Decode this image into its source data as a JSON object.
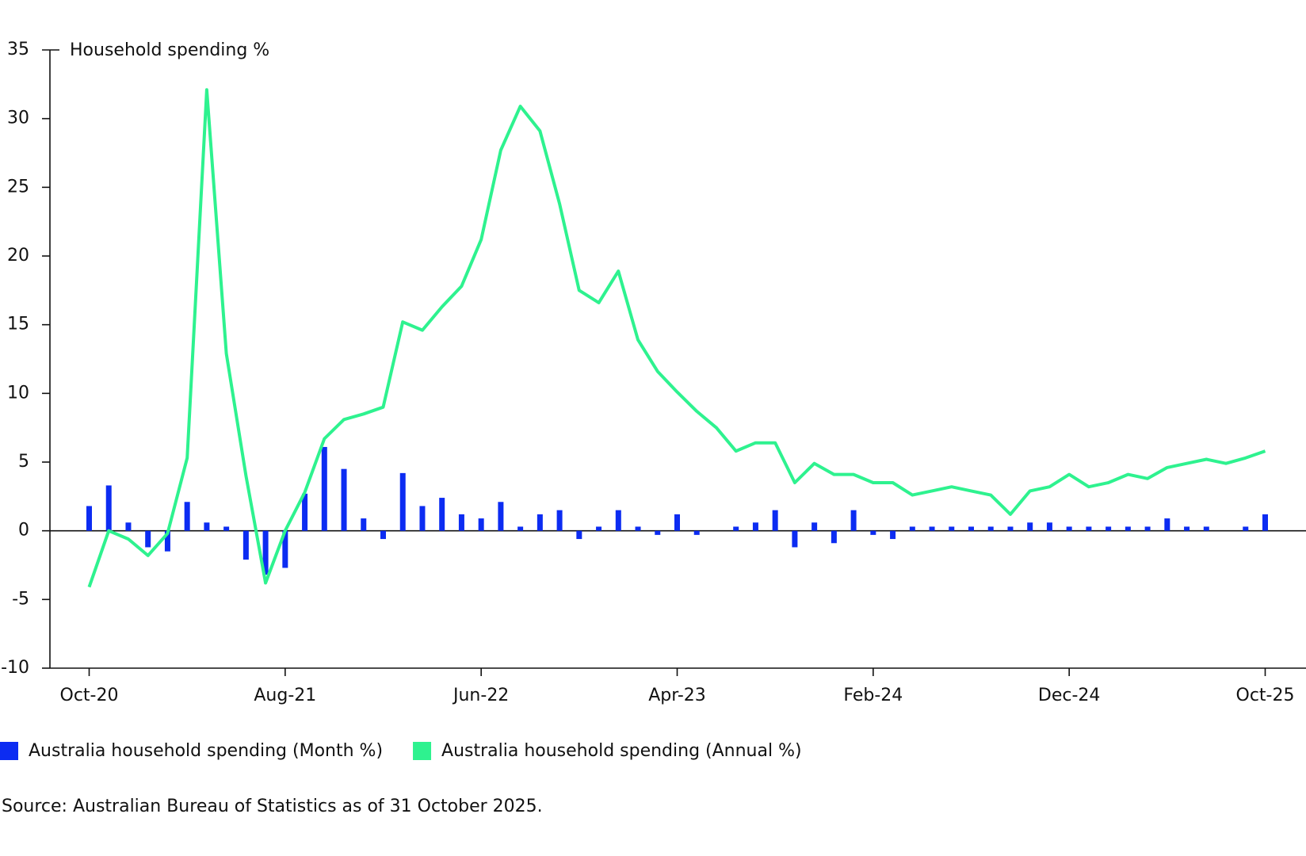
{
  "chart_data": {
    "type": "bar-line",
    "y_label": "Household spending %",
    "source": "Source: Australian Bureau of Statistics as of 31 October 2025.",
    "categories": [
      "Oct-20",
      null,
      null,
      null,
      null,
      null,
      null,
      null,
      null,
      null,
      "Aug-21",
      null,
      null,
      null,
      null,
      null,
      null,
      null,
      null,
      null,
      "Jun-22",
      null,
      null,
      null,
      null,
      null,
      null,
      null,
      null,
      null,
      "Apr-23",
      null,
      null,
      null,
      null,
      null,
      null,
      null,
      null,
      null,
      "Feb-24",
      null,
      null,
      null,
      null,
      null,
      null,
      null,
      null,
      null,
      "Dec-24",
      null,
      null,
      null,
      null,
      null,
      null,
      null,
      null,
      null,
      "Oct-25"
    ],
    "series": [
      {
        "name": "Australia household spending (Month %)",
        "type": "bar",
        "color": "#0c2cf2",
        "values": [
          1.8,
          3.3,
          0.6,
          -1.2,
          -1.5,
          2.1,
          0.6,
          0.3,
          -2.1,
          -3.2,
          -2.7,
          2.7,
          6.1,
          4.5,
          0.9,
          -0.6,
          4.2,
          1.8,
          2.4,
          1.2,
          0.9,
          2.1,
          0.3,
          1.2,
          1.5,
          -0.6,
          0.3,
          1.5,
          0.3,
          -0.3,
          1.2,
          -0.3,
          0,
          0.3,
          0.6,
          1.5,
          -1.2,
          0.6,
          -0.9,
          1.5,
          -0.3,
          -0.6,
          0.3,
          0.3,
          0.3,
          0.3,
          0.3,
          0.3,
          0.6,
          0.6,
          0.3,
          0.3,
          0.3,
          0.3,
          0.3,
          0.9,
          0.3,
          0.3,
          0,
          0.3,
          1.2
        ]
      },
      {
        "name": "Australia household spending (Annual %)",
        "type": "line",
        "color": "#2ef28f",
        "values": [
          -4.1,
          0,
          -0.6,
          -1.8,
          -0.2,
          5.3,
          32.1,
          12.9,
          4.0,
          -3.8,
          0,
          2.8,
          6.7,
          8.1,
          8.5,
          9.0,
          15.2,
          14.6,
          16.3,
          17.8,
          21.2,
          27.7,
          30.9,
          29.1,
          23.8,
          17.5,
          16.6,
          18.9,
          13.9,
          11.6,
          10.1,
          8.7,
          7.5,
          5.8,
          6.4,
          6.4,
          3.5,
          4.9,
          4.1,
          4.1,
          3.5,
          3.5,
          2.6,
          2.9,
          3.2,
          2.9,
          2.6,
          1.2,
          2.9,
          3.2,
          4.1,
          3.2,
          3.5,
          4.1,
          3.8,
          4.6,
          4.9,
          5.2,
          4.9,
          5.3,
          5.8
        ]
      }
    ],
    "ylim": [
      -10,
      35
    ],
    "yticks": [
      -10,
      -5,
      0,
      5,
      10,
      15,
      20,
      25,
      30,
      35
    ],
    "grid": false
  }
}
